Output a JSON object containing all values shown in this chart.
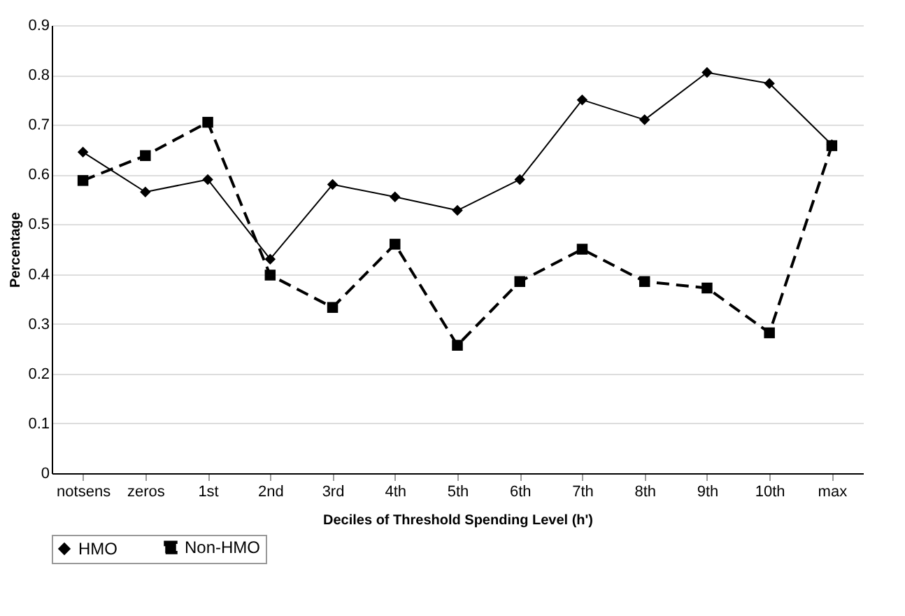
{
  "chart_data": {
    "type": "line",
    "xlabel": "Deciles of Threshold Spending Level (h')",
    "ylabel": "Percentage",
    "categories": [
      "notsens",
      "zeros",
      "1st",
      "2nd",
      "3rd",
      "4th",
      "5th",
      "6th",
      "7th",
      "8th",
      "9th",
      "10th",
      "max"
    ],
    "series": [
      {
        "name": "HMO",
        "color": "#000000",
        "marker": "diamond",
        "line_style": "solid",
        "values": [
          0.645,
          0.565,
          0.59,
          0.43,
          0.58,
          0.555,
          0.528,
          0.59,
          0.75,
          0.71,
          0.805,
          0.783,
          0.66
        ]
      },
      {
        "name": "Non-HMO",
        "color": "#000000",
        "marker": "square",
        "line_style": "dashed",
        "values": [
          0.588,
          0.638,
          0.705,
          0.398,
          0.333,
          0.46,
          0.257,
          0.385,
          0.45,
          0.385,
          0.372,
          0.282,
          0.658
        ]
      }
    ],
    "ylim": [
      0,
      0.9
    ],
    "yticks": [
      0,
      0.1,
      0.2,
      0.3,
      0.4,
      0.5,
      0.6,
      0.7,
      0.8,
      0.9
    ],
    "grid": "y",
    "legend": "bottom"
  }
}
